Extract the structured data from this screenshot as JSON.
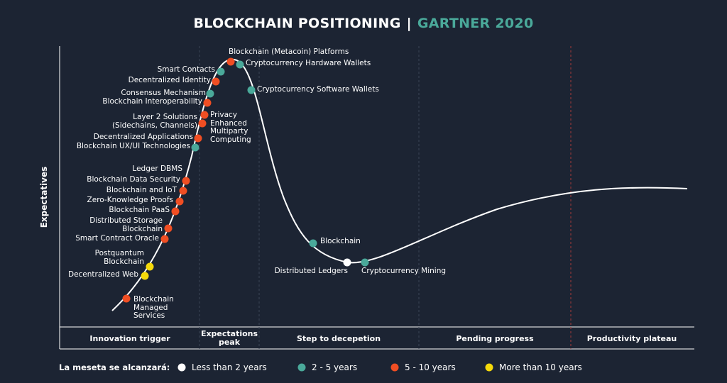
{
  "title": "BLOCKCHAIN POSITIONING",
  "separator": "|",
  "subtitle": "GARTNER 2020",
  "y_axis_label": "Expectatives",
  "phases": [
    "Innovation trigger",
    "Expectations\npeak",
    "Step to decepetion",
    "Pending progress",
    "Productivity plateau"
  ],
  "legend": {
    "title": "La meseta se alcanzará:",
    "items": [
      {
        "label": "Less than 2 years",
        "color": "#ffffff"
      },
      {
        "label": "2 - 5 years",
        "color": "#4aa99a"
      },
      {
        "label": "5 - 10 years",
        "color": "#f04e23"
      },
      {
        "label": "More than 10 years",
        "color": "#f5d90a"
      }
    ]
  },
  "technologies": [
    {
      "label": "Blockchain (Metacoin) Platforms",
      "group": 2
    },
    {
      "label": "Cryptocurrency Hardware Wallets",
      "group": 1
    },
    {
      "label": "Smart Contacts",
      "group": 1
    },
    {
      "label": "Decentralized Identity",
      "group": 2
    },
    {
      "label": "Consensus Mechanism",
      "group": 1
    },
    {
      "label": "Blockchain Interoperability",
      "group": 2
    },
    {
      "label": "Cryptocurrency Software Wallets",
      "group": 1
    },
    {
      "label": "Layer 2 Solutions\n(Sidechains, Channels)",
      "group": 2
    },
    {
      "label": "Privacy\nEnhanced\nMultiparty\nComputing",
      "group": 2
    },
    {
      "label": "Decentralized Applications",
      "group": 2
    },
    {
      "label": "Blockchain UX/UI Technologies",
      "group": 1
    },
    {
      "label": "Ledger DBMS",
      "group": null
    },
    {
      "label": "Blockchain Data Security",
      "group": 2
    },
    {
      "label": "Blockchain and IoT",
      "group": 2
    },
    {
      "label": "Zero-Knowledge Proofs",
      "group": 2
    },
    {
      "label": "Blockchain PaaS",
      "group": 2
    },
    {
      "label": "Distributed Storage\nBlockchain",
      "group": 2
    },
    {
      "label": "Smart Contract Oracle",
      "group": 2
    },
    {
      "label": "Postquantum\nBlockchain",
      "group": 3
    },
    {
      "label": "Decentralized Web",
      "group": 3
    },
    {
      "label": "Blockchain\nManaged\nServices",
      "group": 2
    },
    {
      "label": "Blockchain",
      "group": 1
    },
    {
      "label": "Distributed Ledgers",
      "group": 0
    },
    {
      "label": "Cryptocurrency Mining",
      "group": 1
    }
  ]
}
